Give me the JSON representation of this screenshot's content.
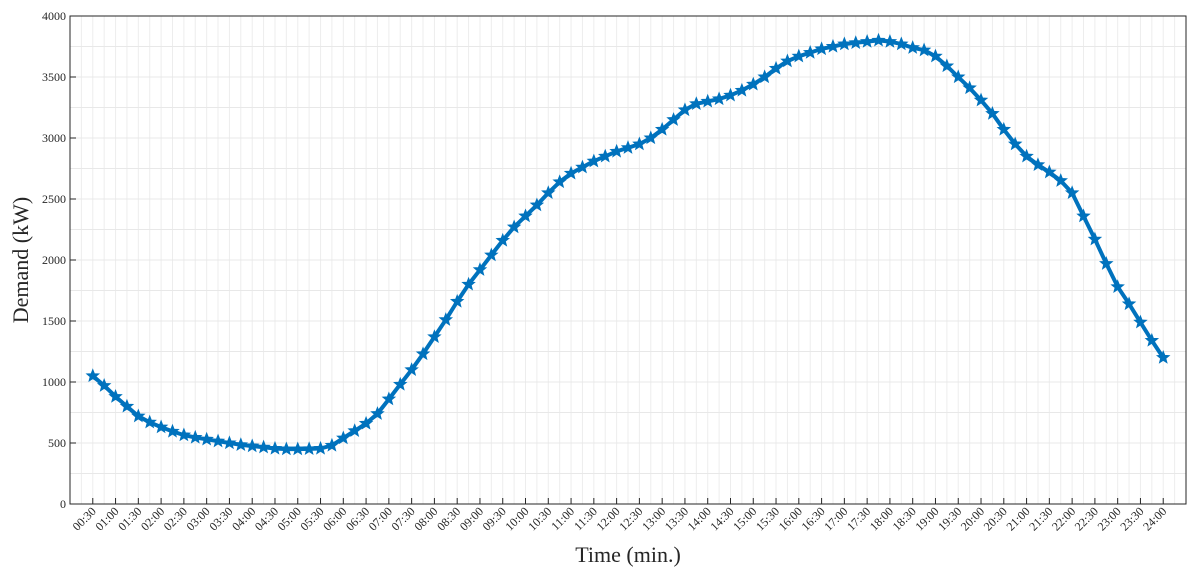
{
  "chart_data": {
    "type": "line",
    "xlabel": "Time (min.)",
    "ylabel": "Demand (kW)",
    "ylim": [
      0,
      4000
    ],
    "yticks": [
      0,
      500,
      1000,
      1500,
      2000,
      2500,
      3000,
      3500,
      4000
    ],
    "grid": true,
    "x_tick_labels": [
      "00:30",
      "01:00",
      "01:30",
      "02:00",
      "02:30",
      "03:00",
      "03:30",
      "04:00",
      "04:30",
      "05:00",
      "05:30",
      "06:00",
      "06:30",
      "07:00",
      "07:30",
      "08:00",
      "08:30",
      "09:00",
      "09:30",
      "10:00",
      "10:30",
      "11:00",
      "11:30",
      "12:00",
      "12:30",
      "13:00",
      "13:30",
      "14:00",
      "14:30",
      "15:00",
      "15:30",
      "16:00",
      "16:30",
      "17:00",
      "17:30",
      "18:00",
      "18:30",
      "19:00",
      "19:30",
      "20:00",
      "20:30",
      "21:00",
      "21:30",
      "22:00",
      "22:30",
      "23:00",
      "23:30",
      "24:00"
    ],
    "series": [
      {
        "color": "#0072BD",
        "marker": "star",
        "x": [
          "00:30",
          "00:45",
          "01:00",
          "01:15",
          "01:30",
          "01:45",
          "02:00",
          "02:15",
          "02:30",
          "02:45",
          "03:00",
          "03:15",
          "03:30",
          "03:45",
          "04:00",
          "04:15",
          "04:30",
          "04:45",
          "05:00",
          "05:15",
          "05:30",
          "05:45",
          "06:00",
          "06:15",
          "06:30",
          "06:45",
          "07:00",
          "07:15",
          "07:30",
          "07:45",
          "08:00",
          "08:15",
          "08:30",
          "08:45",
          "09:00",
          "09:15",
          "09:30",
          "09:45",
          "10:00",
          "10:15",
          "10:30",
          "10:45",
          "11:00",
          "11:15",
          "11:30",
          "11:45",
          "12:00",
          "12:15",
          "12:30",
          "12:45",
          "13:00",
          "13:15",
          "13:30",
          "13:45",
          "14:00",
          "14:15",
          "14:30",
          "14:45",
          "15:00",
          "15:15",
          "15:30",
          "15:45",
          "16:00",
          "16:15",
          "16:30",
          "16:45",
          "17:00",
          "17:15",
          "17:30",
          "17:45",
          "18:00",
          "18:15",
          "18:30",
          "18:45",
          "19:00",
          "19:15",
          "19:30",
          "19:45",
          "20:00",
          "20:15",
          "20:30",
          "20:45",
          "21:00",
          "21:15",
          "21:30",
          "21:45",
          "22:00",
          "22:15",
          "22:30",
          "22:45",
          "23:00",
          "23:15",
          "23:30",
          "23:45",
          "24:00"
        ],
        "values": [
          1050,
          970,
          880,
          800,
          720,
          670,
          630,
          595,
          565,
          545,
          530,
          515,
          500,
          485,
          475,
          465,
          455,
          450,
          450,
          452,
          455,
          480,
          540,
          600,
          660,
          740,
          860,
          980,
          1100,
          1230,
          1370,
          1510,
          1660,
          1800,
          1920,
          2040,
          2160,
          2270,
          2360,
          2450,
          2550,
          2640,
          2710,
          2760,
          2810,
          2850,
          2890,
          2920,
          2950,
          3000,
          3070,
          3150,
          3230,
          3280,
          3300,
          3320,
          3350,
          3390,
          3440,
          3500,
          3570,
          3630,
          3670,
          3700,
          3730,
          3750,
          3770,
          3780,
          3790,
          3800,
          3790,
          3770,
          3740,
          3720,
          3670,
          3590,
          3500,
          3410,
          3310,
          3200,
          3070,
          2950,
          2850,
          2780,
          2720,
          2650,
          2550,
          2360,
          2170,
          1970,
          1780,
          1640,
          1490,
          1340,
          1200
        ]
      }
    ]
  }
}
